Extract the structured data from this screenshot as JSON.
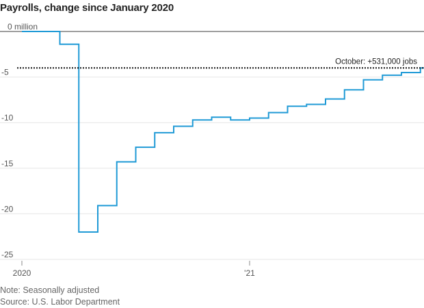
{
  "title": "Payrolls, change since January 2020",
  "note": "Note: Seasonally adjusted",
  "source": "Source: U.S. Labor Department",
  "colors": {
    "line": "#1f9ad6",
    "grid": "#e6e6e6",
    "zero": "#666666",
    "annotation": "#111111"
  },
  "chart_data": {
    "type": "line",
    "step": true,
    "title": "Payrolls, change since January 2020",
    "ylabel": "",
    "xlabel": "",
    "ylim": [
      -25,
      0
    ],
    "y_ticks": [
      0,
      -5,
      -10,
      -15,
      -20,
      -25
    ],
    "y_tick_labels": [
      "0 million",
      "-5",
      "-10",
      "-15",
      "-20",
      "-25"
    ],
    "x_ticks": [
      "2020-01",
      "2021-01"
    ],
    "x_tick_labels": [
      "2020",
      "'21"
    ],
    "grid": true,
    "series": [
      {
        "x": [
          "2020-01",
          "2020-02",
          "2020-03",
          "2020-04",
          "2020-05",
          "2020-06",
          "2020-07",
          "2020-08",
          "2020-09",
          "2020-10",
          "2020-11",
          "2020-12",
          "2021-01",
          "2021-02",
          "2021-03",
          "2021-04",
          "2021-05",
          "2021-06",
          "2021-07",
          "2021-08",
          "2021-09",
          "2021-10"
        ],
        "values": [
          0,
          0,
          -1.4,
          -22.0,
          -19.1,
          -14.3,
          -12.7,
          -11.1,
          -10.4,
          -9.7,
          -9.4,
          -9.7,
          -9.5,
          -8.9,
          -8.2,
          -8.0,
          -7.4,
          -6.4,
          -5.3,
          -4.8,
          -4.5,
          -4.0
        ]
      }
    ],
    "reference_line": {
      "value": -4.0,
      "label": "October: +531,000 jobs"
    }
  }
}
